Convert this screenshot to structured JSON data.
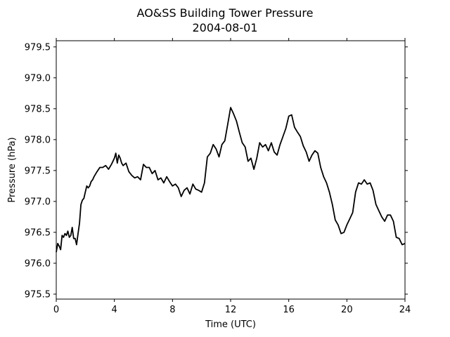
{
  "chart_data": {
    "type": "line",
    "title": "AO&SS Building Tower Pressure",
    "subtitle": "2004-08-01",
    "xlabel": "Time (UTC)",
    "ylabel": "Pressure (hPa)",
    "xlim": [
      0,
      24
    ],
    "ylim": [
      975.42,
      979.6
    ],
    "xticks": [
      0,
      4,
      8,
      12,
      16,
      20,
      24
    ],
    "yticks": [
      975.5,
      976.0,
      976.5,
      977.0,
      977.5,
      978.0,
      978.5,
      979.0,
      979.5
    ],
    "ytick_labels": [
      "975.5",
      "976.0",
      "976.5",
      "977.0",
      "977.5",
      "978.0",
      "978.5",
      "979.0",
      "979.5"
    ],
    "grid": false,
    "line_color": "#000000",
    "series": [
      {
        "x": [
          0.0,
          0.1,
          0.2,
          0.3,
          0.4,
          0.5,
          0.6,
          0.7,
          0.8,
          0.9,
          1.0,
          1.1,
          1.2,
          1.3,
          1.4,
          1.5,
          1.6,
          1.7,
          1.8,
          1.9,
          2.0,
          2.1,
          2.2,
          2.3,
          2.4,
          2.5,
          2.6,
          2.8,
          3.0,
          3.2,
          3.4,
          3.6,
          3.8,
          4.0,
          4.1,
          4.2,
          4.3,
          4.4,
          4.5,
          4.6,
          4.8,
          5.0,
          5.2,
          5.4,
          5.6,
          5.8,
          6.0,
          6.2,
          6.4,
          6.6,
          6.8,
          7.0,
          7.2,
          7.4,
          7.6,
          7.8,
          8.0,
          8.2,
          8.4,
          8.6,
          8.8,
          9.0,
          9.2,
          9.4,
          9.6,
          9.8,
          10.0,
          10.2,
          10.4,
          10.6,
          10.8,
          11.0,
          11.2,
          11.4,
          11.6,
          11.8,
          12.0,
          12.2,
          12.4,
          12.6,
          12.8,
          13.0,
          13.2,
          13.4,
          13.6,
          13.8,
          14.0,
          14.2,
          14.4,
          14.6,
          14.8,
          15.0,
          15.2,
          15.4,
          15.6,
          15.8,
          16.0,
          16.2,
          16.4,
          16.6,
          16.8,
          17.0,
          17.2,
          17.4,
          17.6,
          17.8,
          18.0,
          18.2,
          18.4,
          18.6,
          18.8,
          19.0,
          19.2,
          19.4,
          19.6,
          19.8,
          20.0,
          20.2,
          20.4,
          20.6,
          20.8,
          21.0,
          21.2,
          21.4,
          21.6,
          21.8,
          22.0,
          22.2,
          22.4,
          22.6,
          22.8,
          23.0,
          23.2,
          23.4,
          23.6,
          23.8,
          24.0
        ],
        "values": [
          976.18,
          976.32,
          976.28,
          976.22,
          976.45,
          976.42,
          976.48,
          976.45,
          976.52,
          976.42,
          976.45,
          976.58,
          976.4,
          976.4,
          976.3,
          976.48,
          976.65,
          976.95,
          977.02,
          977.05,
          977.15,
          977.25,
          977.22,
          977.25,
          977.32,
          977.35,
          977.4,
          977.48,
          977.55,
          977.55,
          977.58,
          977.52,
          977.6,
          977.7,
          977.78,
          977.62,
          977.75,
          977.7,
          977.62,
          977.58,
          977.62,
          977.48,
          977.42,
          977.38,
          977.4,
          977.35,
          977.6,
          977.55,
          977.55,
          977.45,
          977.5,
          977.35,
          977.38,
          977.3,
          977.4,
          977.32,
          977.25,
          977.28,
          977.22,
          977.08,
          977.18,
          977.22,
          977.12,
          977.28,
          977.2,
          977.18,
          977.15,
          977.3,
          977.72,
          977.78,
          977.92,
          977.85,
          977.72,
          977.92,
          977.98,
          978.25,
          978.52,
          978.42,
          978.3,
          978.12,
          977.95,
          977.88,
          977.65,
          977.7,
          977.52,
          977.7,
          977.95,
          977.88,
          977.92,
          977.82,
          977.95,
          977.8,
          977.75,
          977.92,
          978.05,
          978.18,
          978.38,
          978.4,
          978.2,
          978.12,
          978.05,
          977.9,
          977.8,
          977.65,
          977.75,
          977.82,
          977.78,
          977.55,
          977.4,
          977.3,
          977.15,
          976.95,
          976.7,
          976.62,
          976.48,
          976.5,
          976.62,
          976.72,
          976.82,
          977.15,
          977.3,
          977.28,
          977.35,
          977.28,
          977.3,
          977.18,
          976.95,
          976.85,
          976.75,
          976.68,
          976.78,
          976.78,
          976.68,
          976.42,
          976.4,
          976.3,
          976.32
        ]
      }
    ]
  }
}
